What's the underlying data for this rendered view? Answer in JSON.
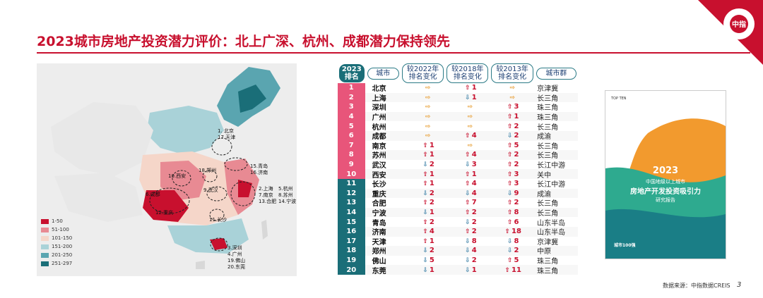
{
  "title": "2023城市房地产投资潜力评价：北上广深、杭州、成都潜力保持领先",
  "colors": {
    "accent": "#c8102e",
    "teal": "#1a6e78",
    "pink": "#e8557a"
  },
  "logo": {
    "text": "中指",
    "alt": "CHINA INDEX ACADEMY"
  },
  "map": {
    "legend": [
      {
        "label": "1-50",
        "color": "#c8102e"
      },
      {
        "label": "51-100",
        "color": "#e88a93"
      },
      {
        "label": "101-150",
        "color": "#f5d6c9"
      },
      {
        "label": "151-200",
        "color": "#a9d2d8"
      },
      {
        "label": "201-250",
        "color": "#5aa5b0"
      },
      {
        "label": "251-297",
        "color": "#1a6e78"
      }
    ],
    "labels": [
      {
        "text": "1. 北京\n17.天津"
      },
      {
        "text": "15.青岛\n16.济南"
      },
      {
        "text": "10.西安"
      },
      {
        "text": "18.郑州"
      },
      {
        "text": "6.成都"
      },
      {
        "text": "9.武汉"
      },
      {
        "text": "2.上海\n7.南京\n13.合肥"
      },
      {
        "text": "5.杭州\n8.苏州\n14.宁波"
      },
      {
        "text": "12.重庆"
      },
      {
        "text": "11.长沙"
      },
      {
        "text": "3.深圳\n4.广州\n19.佛山\n20.东莞"
      }
    ]
  },
  "table": {
    "headers": [
      "2023\n排名",
      "城市",
      "较2022年\n排名变化",
      "较2018年\n排名变化",
      "较2013年\n排名变化",
      "城市群"
    ],
    "rows": [
      {
        "rank": "1",
        "city": "北京",
        "c22": {
          "dir": "same",
          "v": ""
        },
        "c18": {
          "dir": "up",
          "v": "1"
        },
        "c13": {
          "dir": "same",
          "v": ""
        },
        "group": "京津冀"
      },
      {
        "rank": "2",
        "city": "上海",
        "c22": {
          "dir": "same",
          "v": ""
        },
        "c18": {
          "dir": "down",
          "v": "1"
        },
        "c13": {
          "dir": "same",
          "v": ""
        },
        "group": "长三角"
      },
      {
        "rank": "3",
        "city": "深圳",
        "c22": {
          "dir": "same",
          "v": ""
        },
        "c18": {
          "dir": "same",
          "v": ""
        },
        "c13": {
          "dir": "up",
          "v": "3"
        },
        "group": "珠三角"
      },
      {
        "rank": "4",
        "city": "广州",
        "c22": {
          "dir": "same",
          "v": ""
        },
        "c18": {
          "dir": "same",
          "v": ""
        },
        "c13": {
          "dir": "up",
          "v": "1"
        },
        "group": "珠三角"
      },
      {
        "rank": "5",
        "city": "杭州",
        "c22": {
          "dir": "same",
          "v": ""
        },
        "c18": {
          "dir": "same",
          "v": ""
        },
        "c13": {
          "dir": "up",
          "v": "2"
        },
        "group": "长三角"
      },
      {
        "rank": "6",
        "city": "成都",
        "c22": {
          "dir": "same",
          "v": ""
        },
        "c18": {
          "dir": "up",
          "v": "4"
        },
        "c13": {
          "dir": "down",
          "v": "2"
        },
        "group": "成渝"
      },
      {
        "rank": "7",
        "city": "南京",
        "c22": {
          "dir": "up",
          "v": "1"
        },
        "c18": {
          "dir": "same",
          "v": ""
        },
        "c13": {
          "dir": "up",
          "v": "5"
        },
        "group": "长三角"
      },
      {
        "rank": "8",
        "city": "苏州",
        "c22": {
          "dir": "up",
          "v": "1"
        },
        "c18": {
          "dir": "up",
          "v": "4"
        },
        "c13": {
          "dir": "up",
          "v": "2"
        },
        "group": "长三角"
      },
      {
        "rank": "9",
        "city": "武汉",
        "c22": {
          "dir": "down",
          "v": "2"
        },
        "c18": {
          "dir": "down",
          "v": "3"
        },
        "c13": {
          "dir": "up",
          "v": "2"
        },
        "group": "长江中游"
      },
      {
        "rank": "10",
        "city": "西安",
        "c22": {
          "dir": "up",
          "v": "1"
        },
        "c18": {
          "dir": "up",
          "v": "1"
        },
        "c13": {
          "dir": "up",
          "v": "3"
        },
        "group": "关中"
      },
      {
        "rank": "11",
        "city": "长沙",
        "c22": {
          "dir": "up",
          "v": "1"
        },
        "c18": {
          "dir": "up",
          "v": "4"
        },
        "c13": {
          "dir": "up",
          "v": "3"
        },
        "group": "长江中游"
      },
      {
        "rank": "12",
        "city": "重庆",
        "c22": {
          "dir": "down",
          "v": "2"
        },
        "c18": {
          "dir": "down",
          "v": "4"
        },
        "c13": {
          "dir": "down",
          "v": "9"
        },
        "group": "成渝"
      },
      {
        "rank": "13",
        "city": "合肥",
        "c22": {
          "dir": "up",
          "v": "2"
        },
        "c18": {
          "dir": "up",
          "v": "7"
        },
        "c13": {
          "dir": "up",
          "v": "2"
        },
        "group": "长三角"
      },
      {
        "rank": "14",
        "city": "宁波",
        "c22": {
          "dir": "down",
          "v": "1"
        },
        "c18": {
          "dir": "up",
          "v": "2"
        },
        "c13": {
          "dir": "up",
          "v": "8"
        },
        "group": "长三角"
      },
      {
        "rank": "15",
        "city": "青岛",
        "c22": {
          "dir": "up",
          "v": "2"
        },
        "c18": {
          "dir": "down",
          "v": "2"
        },
        "c13": {
          "dir": "up",
          "v": "6"
        },
        "group": "山东半岛"
      },
      {
        "rank": "16",
        "city": "济南",
        "c22": {
          "dir": "up",
          "v": "4"
        },
        "c18": {
          "dir": "up",
          "v": "2"
        },
        "c13": {
          "dir": "up",
          "v": "18"
        },
        "group": "山东半岛"
      },
      {
        "rank": "17",
        "city": "天津",
        "c22": {
          "dir": "up",
          "v": "1"
        },
        "c18": {
          "dir": "down",
          "v": "8"
        },
        "c13": {
          "dir": "down",
          "v": "8"
        },
        "group": "京津冀"
      },
      {
        "rank": "18",
        "city": "郑州",
        "c22": {
          "dir": "down",
          "v": "2"
        },
        "c18": {
          "dir": "down",
          "v": "4"
        },
        "c13": {
          "dir": "down",
          "v": "2"
        },
        "group": "中原"
      },
      {
        "rank": "19",
        "city": "佛山",
        "c22": {
          "dir": "down",
          "v": "5"
        },
        "c18": {
          "dir": "down",
          "v": "2"
        },
        "c13": {
          "dir": "up",
          "v": "5"
        },
        "group": "珠三角"
      },
      {
        "rank": "20",
        "city": "东莞",
        "c22": {
          "dir": "down",
          "v": "1"
        },
        "c18": {
          "dir": "down",
          "v": "1"
        },
        "c13": {
          "dir": "up",
          "v": "11"
        },
        "group": "珠三角"
      }
    ]
  },
  "cover": {
    "top_label": "TOP TEN",
    "year": "2023",
    "line1": "中国地级以上城市",
    "line2": "房地产开发投资吸引力",
    "line3": "研究报告",
    "badge": "城市100强"
  },
  "footer": {
    "source": "数据来源：中指数据CREIS",
    "page": "3"
  }
}
